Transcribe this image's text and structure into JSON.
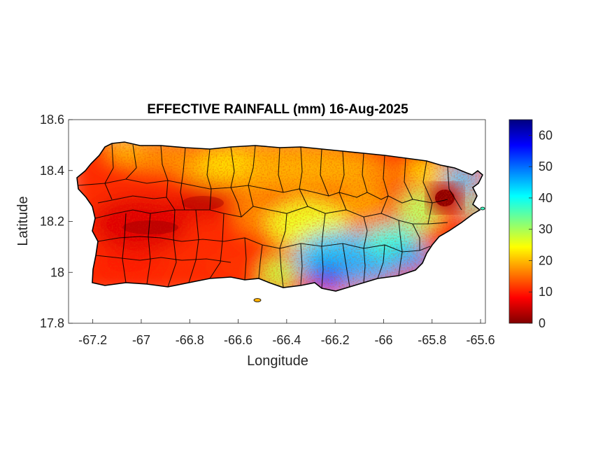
{
  "map": {
    "title": "EFFECTIVE RAINFALL (mm) 16-Aug-2025",
    "xlabel": "Longitude",
    "ylabel": "Latitude",
    "xlim": [
      -67.3,
      -65.58
    ],
    "ylim": [
      17.8,
      18.6
    ],
    "xticks": [
      {
        "value": -67.2,
        "label": "-67.2"
      },
      {
        "value": -67.0,
        "label": "-67"
      },
      {
        "value": -66.8,
        "label": "-66.8"
      },
      {
        "value": -66.6,
        "label": "-66.6"
      },
      {
        "value": -66.4,
        "label": "-66.4"
      },
      {
        "value": -66.2,
        "label": "-66.2"
      },
      {
        "value": -66.0,
        "label": "-66"
      },
      {
        "value": -65.8,
        "label": "-65.8"
      },
      {
        "value": -65.6,
        "label": "-65.6"
      }
    ],
    "yticks": [
      {
        "value": 17.8,
        "label": "17.8"
      },
      {
        "value": 18.0,
        "label": "18"
      },
      {
        "value": 18.2,
        "label": "18.2"
      },
      {
        "value": 18.4,
        "label": "18.4"
      },
      {
        "value": 18.6,
        "label": "18.6"
      }
    ],
    "colormap": "jet-reversed",
    "colorbar": {
      "min": 0,
      "max": 65,
      "ticks": [
        {
          "value": 0,
          "label": "0"
        },
        {
          "value": 10,
          "label": "10"
        },
        {
          "value": 20,
          "label": "20"
        },
        {
          "value": 30,
          "label": "30"
        },
        {
          "value": 40,
          "label": "40"
        },
        {
          "value": 50,
          "label": "50"
        },
        {
          "value": 60,
          "label": "60"
        }
      ],
      "colors": [
        "#800000",
        "#ff0000",
        "#ff8000",
        "#ffff00",
        "#80ff80",
        "#00ffff",
        "#0080ff",
        "#0000ff",
        "#000080"
      ]
    },
    "region": "Puerto Rico",
    "boundaries": "municipalities",
    "rainfall_pattern": [
      {
        "area": "west and southwest",
        "level_mm": "0-10"
      },
      {
        "area": "north central coast",
        "level_mm": "15-25"
      },
      {
        "area": "south central coast near -66.2",
        "level_mm": "45-60"
      },
      {
        "area": "northeast near -65.65",
        "level_mm": "35-55"
      },
      {
        "area": "east-northeast near -65.78, 18.28",
        "level_mm": "0-5"
      }
    ]
  }
}
